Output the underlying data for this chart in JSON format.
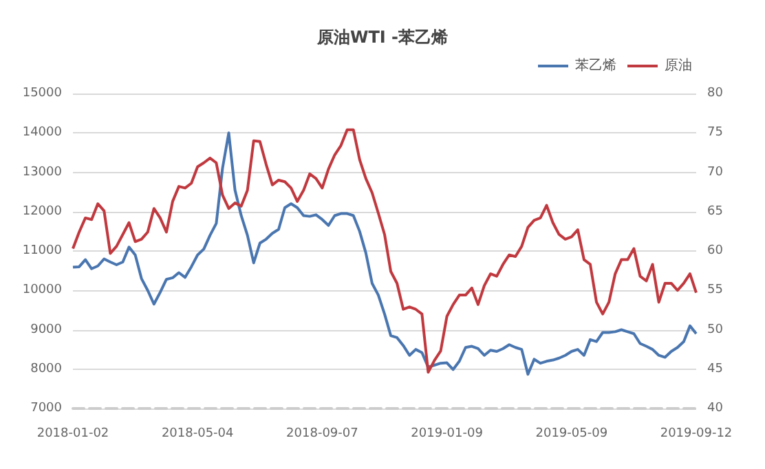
{
  "chart_data": {
    "type": "line",
    "title": "原油WTI -苯乙烯",
    "categories": [
      "2018-01-02",
      null,
      null,
      null,
      null,
      null,
      null,
      null,
      null,
      null,
      null,
      null,
      null,
      null,
      null,
      null,
      null,
      null,
      null,
      null,
      "2018-05-04",
      null,
      null,
      null,
      null,
      null,
      null,
      null,
      null,
      null,
      null,
      null,
      null,
      null,
      null,
      null,
      null,
      null,
      null,
      null,
      "2018-09-07",
      null,
      null,
      null,
      null,
      null,
      null,
      null,
      null,
      null,
      null,
      null,
      null,
      null,
      null,
      null,
      null,
      null,
      null,
      null,
      "2019-01-09",
      null,
      null,
      null,
      null,
      null,
      null,
      null,
      null,
      null,
      null,
      null,
      null,
      null,
      null,
      null,
      null,
      null,
      null,
      null,
      "2019-05-09",
      null,
      null,
      null,
      null,
      null,
      null,
      null,
      null,
      null,
      null,
      null,
      null,
      null,
      null,
      null,
      null,
      null,
      null,
      null,
      "2019-09-12"
    ],
    "series": [
      {
        "name": "苯乙烯",
        "color": "#4a76b0",
        "values": [
          10590,
          10600,
          10780,
          10550,
          10620,
          10800,
          10720,
          10650,
          10720,
          11100,
          10900,
          10300,
          10000,
          9650,
          9950,
          10280,
          10320,
          10450,
          10330,
          10600,
          10900,
          11050,
          11400,
          11700,
          13100,
          14000,
          12550,
          11900,
          11400,
          10700,
          11200,
          11300,
          11450,
          11550,
          12100,
          12200,
          12100,
          11900,
          11880,
          11920,
          11800,
          11650,
          11900,
          11950,
          11950,
          11900,
          11500,
          10950,
          10180,
          9880,
          9400,
          8850,
          8800,
          8600,
          8350,
          8500,
          8420,
          8050,
          8100,
          8150,
          8160,
          7990,
          8200,
          8550,
          8580,
          8520,
          8350,
          8480,
          8450,
          8520,
          8620,
          8550,
          8500,
          7870,
          8250,
          8150,
          8200,
          8230,
          8280,
          8350,
          8450,
          8500,
          8350,
          8750,
          8700,
          8930,
          8930,
          8950,
          9000,
          8950,
          8900,
          8650,
          8580,
          8500,
          8350,
          8300,
          8450,
          8550,
          8700,
          9100,
          8900
        ]
      },
      {
        "name": "原油",
        "color": "#c0393f",
        "axis": "y2",
        "values": [
          60.3,
          62.4,
          64.2,
          64.0,
          66.0,
          65.1,
          59.7,
          60.6,
          62.1,
          63.6,
          61.2,
          61.5,
          62.4,
          65.4,
          64.2,
          62.4,
          66.3,
          68.2,
          68.0,
          68.6,
          70.7,
          71.2,
          71.8,
          71.2,
          67.1,
          65.4,
          66.1,
          65.7,
          67.7,
          74.0,
          73.9,
          71.0,
          68.4,
          69.0,
          68.8,
          68.0,
          66.3,
          67.7,
          69.8,
          69.2,
          68.0,
          70.4,
          72.2,
          73.4,
          75.4,
          75.4,
          71.6,
          69.2,
          67.4,
          64.8,
          62.1,
          57.4,
          55.9,
          52.6,
          52.9,
          52.6,
          52.0,
          44.6,
          46.1,
          47.3,
          51.7,
          53.2,
          54.4,
          54.4,
          55.3,
          53.2,
          55.6,
          57.1,
          56.8,
          58.3,
          59.5,
          59.3,
          60.6,
          63.0,
          63.9,
          64.2,
          65.8,
          63.6,
          62.1,
          61.5,
          61.8,
          62.7,
          58.9,
          58.3,
          53.5,
          52.0,
          53.5,
          57.1,
          58.9,
          58.9,
          60.3,
          56.8,
          56.2,
          58.3,
          53.5,
          55.9,
          55.9,
          55.0,
          55.9,
          57.1,
          54.7
        ]
      }
    ],
    "ylim": [
      7000,
      15000
    ],
    "yticks": [
      7000,
      8000,
      9000,
      10000,
      11000,
      12000,
      13000,
      14000,
      15000
    ],
    "y2lim": [
      40,
      80
    ],
    "y2ticks": [
      40,
      45,
      50,
      55,
      60,
      65,
      70,
      75,
      80
    ],
    "grid": "y",
    "legend": "top right",
    "marker": "none",
    "line_style": "solid"
  }
}
